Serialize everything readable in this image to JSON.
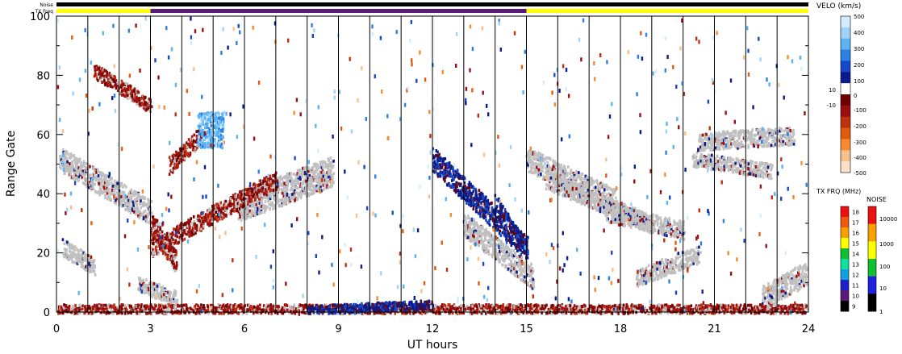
{
  "chart_data": {
    "type": "heatmap",
    "xlabel": "UT hours",
    "ylabel": "Range Gate",
    "xlim": [
      0,
      24
    ],
    "ylim": [
      0,
      100
    ],
    "xticks": [
      0,
      3,
      6,
      9,
      12,
      15,
      18,
      21,
      24
    ],
    "yticks": [
      0,
      20,
      40,
      60,
      80,
      100
    ],
    "scan_markers_ut": [
      1.0,
      2.0,
      3.0,
      4.0,
      5.0,
      6.0,
      7.0,
      8.0,
      9.0,
      10.0,
      11.0,
      12.0,
      13.0,
      14.0,
      15.0,
      16.0,
      17.0,
      18.0,
      19.0,
      20.0,
      21.0,
      22.0,
      23.0
    ],
    "top_strips": {
      "noise_label": "Noise",
      "txfreq_label": "TX Freq",
      "noise_color": "#000000",
      "txfreq_segments": [
        {
          "start": 0,
          "end": 3,
          "color": "#ffff00"
        },
        {
          "start": 3,
          "end": 15,
          "color": "#5a1a7a"
        },
        {
          "start": 15,
          "end": 24,
          "color": "#ffff00"
        }
      ]
    },
    "ground_scatter_color": "#c0c0c0",
    "echo_regions": [
      {
        "kind": "ground",
        "t0": 0.1,
        "t1": 3.0,
        "g0": 52,
        "g1": 34,
        "width": 8
      },
      {
        "kind": "ground",
        "t0": 5.8,
        "t1": 8.8,
        "g0": 36,
        "g1": 48,
        "width": 10
      },
      {
        "kind": "ground",
        "t0": 2.6,
        "t1": 3.8,
        "g0": 10,
        "g1": 5,
        "width": 5
      },
      {
        "kind": "ground",
        "t0": 0.2,
        "t1": 1.2,
        "g0": 22,
        "g1": 16,
        "width": 6
      },
      {
        "kind": "ground",
        "t0": 13.0,
        "t1": 15.2,
        "g0": 30,
        "g1": 12,
        "width": 8
      },
      {
        "kind": "ground",
        "t0": 15.0,
        "t1": 17.8,
        "g0": 52,
        "g1": 38,
        "width": 8
      },
      {
        "kind": "ground",
        "t0": 15.6,
        "t1": 19.0,
        "g0": 45,
        "g1": 30,
        "width": 6
      },
      {
        "kind": "ground",
        "t0": 17.5,
        "t1": 20.0,
        "g0": 34,
        "g1": 28,
        "width": 6
      },
      {
        "kind": "ground",
        "t0": 18.5,
        "t1": 20.5,
        "g0": 12,
        "g1": 20,
        "width": 6
      },
      {
        "kind": "ground",
        "t0": 20.5,
        "t1": 23.5,
        "g0": 58,
        "g1": 60,
        "width": 6
      },
      {
        "kind": "ground",
        "t0": 22.5,
        "t1": 24.0,
        "g0": 5,
        "g1": 14,
        "width": 8
      },
      {
        "kind": "ground",
        "t0": 20.3,
        "t1": 22.8,
        "g0": 52,
        "g1": 48,
        "width": 5
      },
      {
        "kind": "neg",
        "t0": 3.0,
        "t1": 7.0,
        "g0": 22,
        "g1": 45,
        "width": 6
      },
      {
        "kind": "neg",
        "t0": 3.0,
        "t1": 3.8,
        "g0": 30,
        "g1": 18,
        "width": 8
      },
      {
        "kind": "neg",
        "t0": 1.2,
        "t1": 3.0,
        "g0": 82,
        "g1": 70,
        "width": 5
      },
      {
        "kind": "neg",
        "t0": 3.6,
        "t1": 4.6,
        "g0": 50,
        "g1": 60,
        "width": 6
      },
      {
        "kind": "neg",
        "t0": 0.0,
        "t1": 24.0,
        "g0": 1.5,
        "g1": 1.5,
        "width": 3
      },
      {
        "kind": "pos",
        "t0": 12.0,
        "t1": 15.0,
        "g0": 52,
        "g1": 22,
        "width": 8
      },
      {
        "kind": "pos",
        "t0": 14.0,
        "t1": 15.0,
        "g0": 38,
        "g1": 22,
        "width": 4
      },
      {
        "kind": "fast",
        "t0": 4.5,
        "t1": 5.3,
        "g0": 62,
        "g1": 62,
        "width": 12
      },
      {
        "kind": "pos",
        "t0": 8.0,
        "t1": 12.0,
        "g0": 1,
        "g1": 3,
        "width": 3
      }
    ],
    "velocity_colorbar": {
      "title": "VELO (km/s)",
      "tick_labels": [
        "500",
        "400",
        "300",
        "200",
        "100",
        "10",
        "0",
        "-10",
        "-100",
        "-200",
        "-300",
        "-400",
        "-500"
      ],
      "colors": [
        "#d4ecff",
        "#9fd3fa",
        "#5ab4f2",
        "#2d7fe0",
        "#1848c8",
        "#0a1c8c",
        "#ffffff",
        "#6e0000",
        "#9a1010",
        "#c03010",
        "#e05a10",
        "#f58a30",
        "#f8c08c",
        "#fce0c8"
      ]
    },
    "txfreq_colorbar": {
      "title": "TX FRQ (MHz)",
      "tick_labels": [
        "18",
        "17",
        "16",
        "15",
        "14",
        "13",
        "12",
        "11",
        "10",
        "9"
      ],
      "colors": [
        "#ee1010",
        "#f05a10",
        "#f8a000",
        "#ffff00",
        "#10c030",
        "#10e0a0",
        "#10a0e0",
        "#2020c8",
        "#5a1a7a",
        "#000000"
      ]
    },
    "noise_colorbar": {
      "title": "NOISE",
      "tick_labels": [
        "10000",
        "1000",
        "100",
        "10",
        "1"
      ],
      "colors": [
        "#ee1010",
        "#f8a000",
        "#ffff00",
        "#10c030",
        "#2020e0",
        "#000000"
      ]
    }
  }
}
